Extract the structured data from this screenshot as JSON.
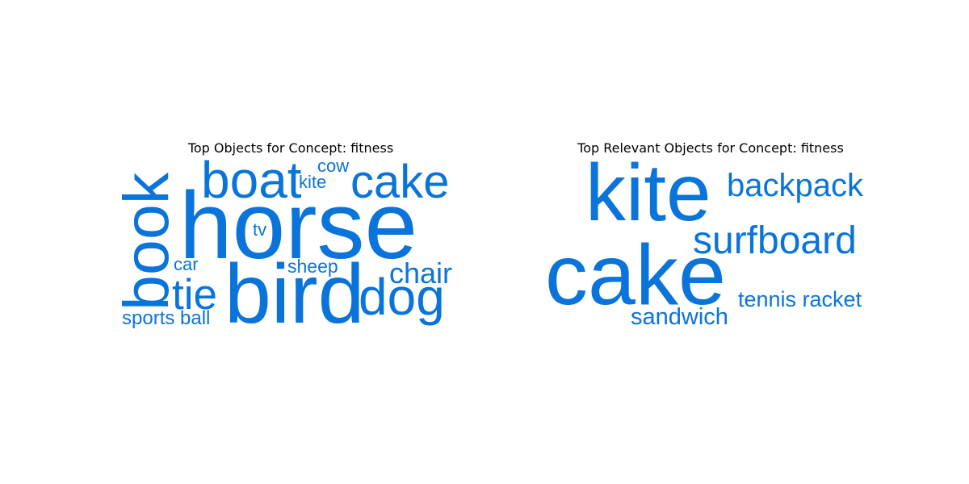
{
  "chart_data": [
    {
      "type": "wordcloud",
      "title": "Top Objects for Concept: fitness",
      "color": "#0a74da",
      "words": [
        {
          "text": "horse",
          "weight": 100
        },
        {
          "text": "bird",
          "weight": 82
        },
        {
          "text": "book",
          "weight": 70
        },
        {
          "text": "boat",
          "weight": 56
        },
        {
          "text": "cake",
          "weight": 53
        },
        {
          "text": "dog",
          "weight": 52
        },
        {
          "text": "tie",
          "weight": 46
        },
        {
          "text": "chair",
          "weight": 34
        },
        {
          "text": "sports ball",
          "weight": 24
        },
        {
          "text": "sheep",
          "weight": 22
        },
        {
          "text": "car",
          "weight": 21
        },
        {
          "text": "kite",
          "weight": 21
        },
        {
          "text": "cow",
          "weight": 20
        },
        {
          "text": "tv",
          "weight": 20
        }
      ]
    },
    {
      "type": "wordcloud",
      "title": "Top Relevant Objects for Concept: fitness",
      "color": "#0a74da",
      "words": [
        {
          "text": "cake",
          "weight": 100
        },
        {
          "text": "kite",
          "weight": 94
        },
        {
          "text": "surfboard",
          "weight": 53
        },
        {
          "text": "backpack",
          "weight": 45
        },
        {
          "text": "sandwich",
          "weight": 33
        },
        {
          "text": "tennis racket",
          "weight": 30
        }
      ]
    }
  ]
}
